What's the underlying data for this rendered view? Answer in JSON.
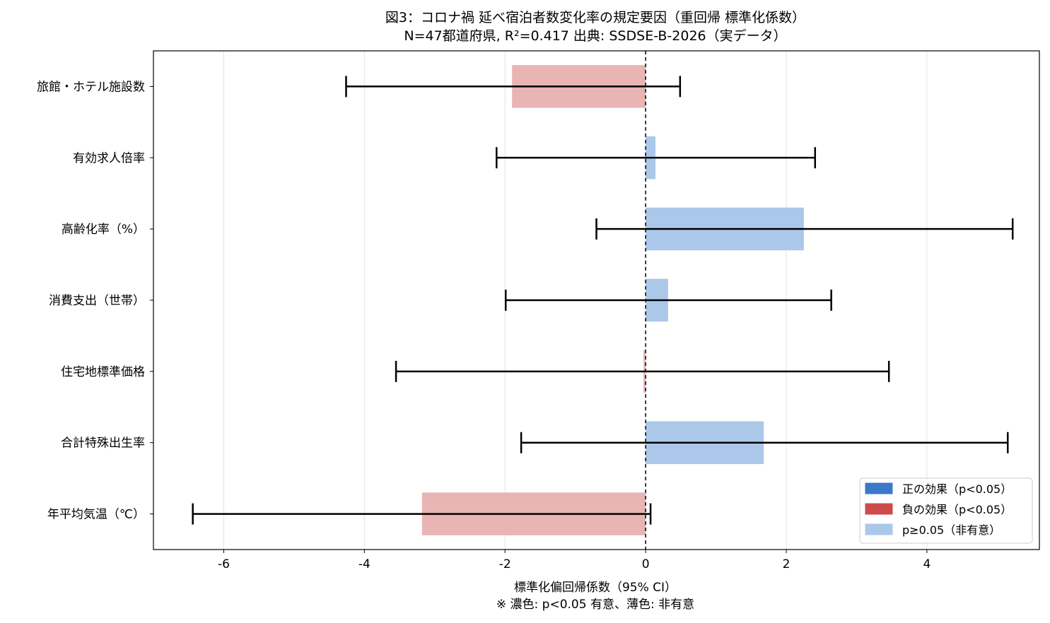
{
  "chart_data": {
    "type": "bar",
    "orientation": "horizontal",
    "title": "図3：コロナ禍 延べ宿泊者数変化率の規定要因（重回帰 標準化係数）",
    "subtitle": "N=47都道府県, R²=0.417  出典: SSDSE-B-2026（実データ）",
    "xlabel": "標準化偏回帰係数（95% CI）",
    "xlabel_note": "※ 濃色: p<0.05 有意、薄色: 非有意",
    "xlim": [
      -7.0,
      5.6
    ],
    "xticks": [
      -6,
      -4,
      -2,
      0,
      2,
      4
    ],
    "xtick_labels": [
      "-6",
      "-4",
      "-2",
      "0",
      "2",
      "4"
    ],
    "grid": "vertical",
    "reference_line": 0,
    "legend_position": "lower-right",
    "legend": [
      {
        "label": "正の効果（p<0.05）",
        "color": "#3a78c8"
      },
      {
        "label": "負の効果（p<0.05）",
        "color": "#cf4a4a"
      },
      {
        "label": "p≥0.05（非有意）",
        "color": "#abc8ea"
      }
    ],
    "colors": {
      "nonsig_positive": "#abc8ea",
      "nonsig_negative": "#e8b4b4",
      "error_bar": "#000000"
    },
    "categories": [
      "旅館・ホテル施設数",
      "有効求人倍率",
      "高齢化率（%）",
      "消費支出（世帯）",
      "住宅地標準価格",
      "合計特殊出生率",
      "年平均気温（℃）"
    ],
    "values": [
      -1.9,
      0.14,
      2.25,
      0.32,
      -0.03,
      1.68,
      -3.18
    ],
    "ci_low": [
      -4.26,
      -2.12,
      -0.7,
      -1.99,
      -3.55,
      -1.77,
      -6.44
    ],
    "ci_high": [
      0.49,
      2.41,
      5.22,
      2.64,
      3.46,
      5.15,
      0.07
    ],
    "significant": [
      false,
      false,
      false,
      false,
      false,
      false,
      false
    ]
  }
}
